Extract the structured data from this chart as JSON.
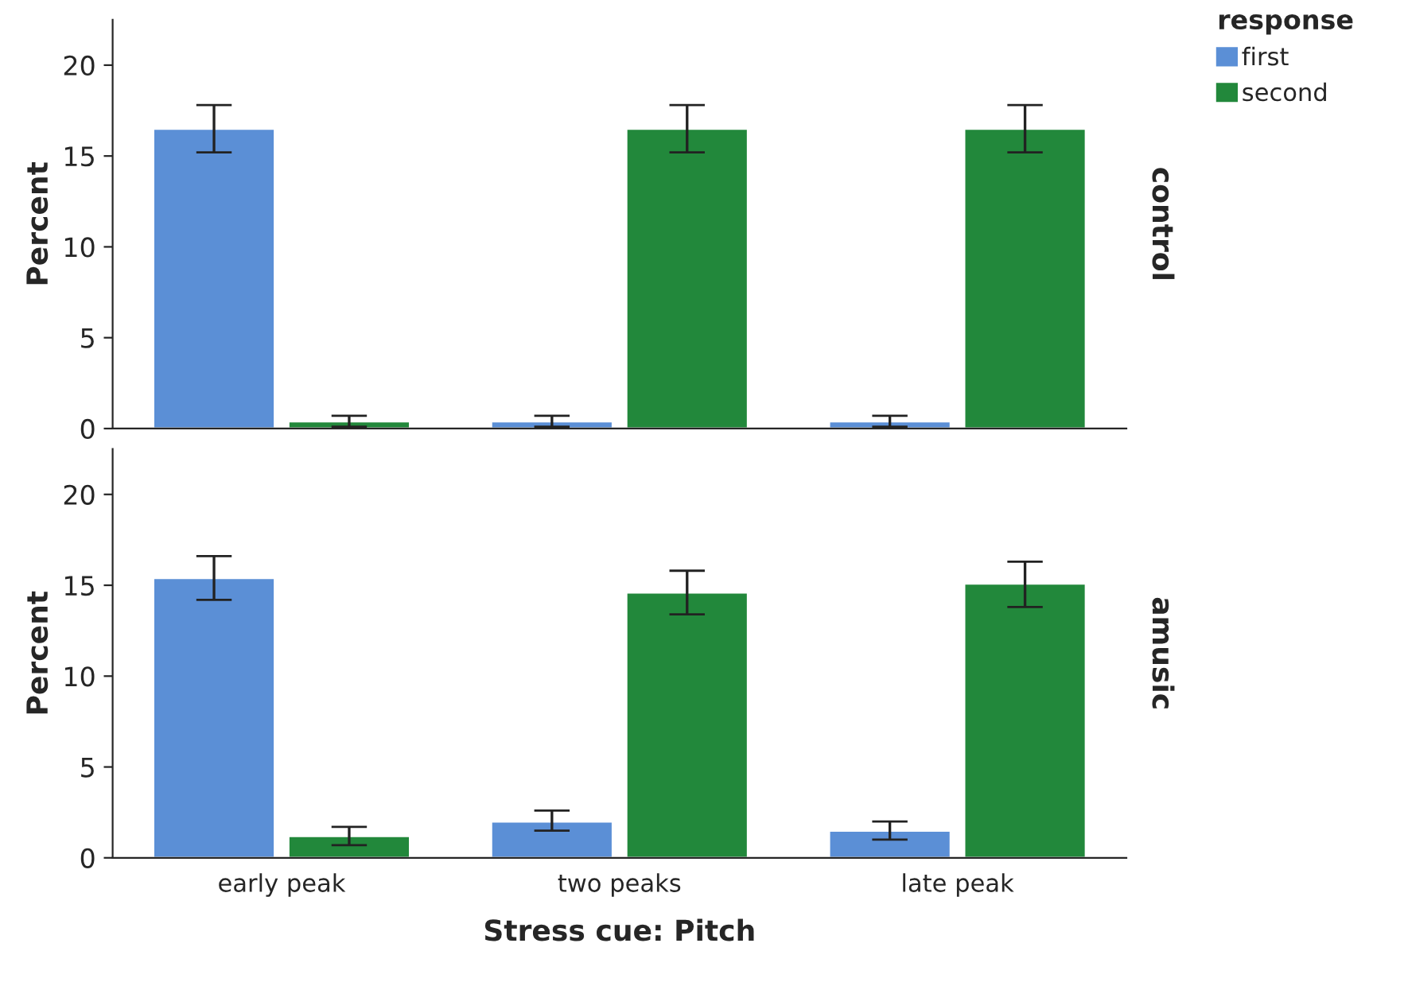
{
  "chart_data": [
    {
      "type": "bar",
      "ylabel": "Percent",
      "categories": [
        null,
        null,
        null
      ],
      "ylim": [
        0,
        22.5
      ],
      "yticks": [
        0,
        5,
        10,
        15,
        20
      ],
      "tick_labels": "y",
      "legend": "top right",
      "legend_title": "response",
      "grid": false,
      "annotations": [
        "control"
      ],
      "series": [
        {
          "name": "first",
          "color": "#5b8fd6",
          "values": [
            16.5,
            0.4,
            0.4
          ],
          "errors": [
            [
              15.2,
              17.8
            ],
            0.3,
            0.3
          ]
        },
        {
          "name": "second",
          "color": "#22883b",
          "values": [
            0.4,
            16.5,
            16.5
          ],
          "errors": [
            0.3,
            [
              15.2,
              17.8
            ],
            [
              15.2,
              17.8
            ]
          ]
        }
      ]
    },
    {
      "type": "bar",
      "ylabel": "Percent",
      "xlabel": "Stress cue: Pitch",
      "categories": [
        "early peak",
        "two peaks",
        "late peak"
      ],
      "ylim": [
        0,
        22.5
      ],
      "yticks": [
        0,
        5,
        10,
        15,
        20
      ],
      "legend": false,
      "grid": false,
      "annotations": [
        "amusic"
      ],
      "series": [
        {
          "color": "#5b8fd6",
          "values": [
            15.4,
            2.0,
            1.5
          ],
          "errors": [
            [
              14.2,
              16.6
            ],
            [
              1.5,
              2.6
            ],
            [
              1.0,
              2.0
            ]
          ]
        },
        {
          "color": "#22883b",
          "values": [
            1.2,
            14.6,
            15.1
          ],
          "errors": [
            [
              0.7,
              1.7
            ],
            [
              13.4,
              15.8
            ],
            [
              13.8,
              16.3
            ]
          ]
        }
      ]
    }
  ]
}
